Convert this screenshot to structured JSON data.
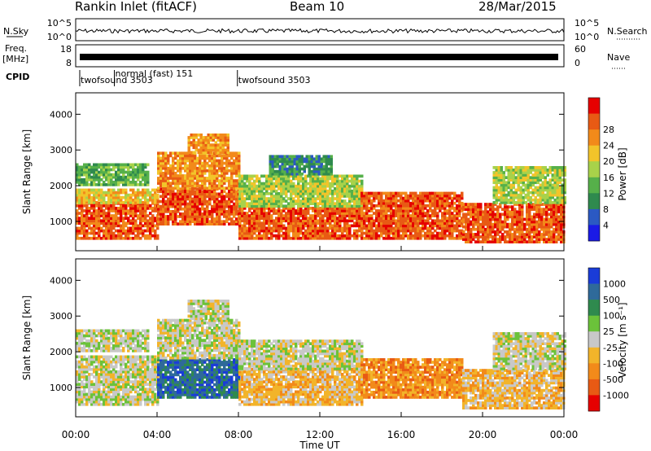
{
  "header": {
    "station": "Rankin Inlet (fitACF)",
    "beam": "Beam 10",
    "date": "28/Mar/2015"
  },
  "top_panels": {
    "nsky": {
      "left_label": "N.Sky",
      "left_ticks": [
        "10^5",
        "10^0"
      ],
      "right_ticks": [
        "10^5",
        "10^0"
      ],
      "right_label": "N.Search"
    },
    "freq": {
      "left_label_1": "Freq.",
      "left_label_2": "[MHz]",
      "left_ticks": [
        "18",
        "8"
      ],
      "right_ticks": [
        "60",
        "0"
      ],
      "right_label": "Nave"
    },
    "cpid": {
      "label": "CPID",
      "modes": [
        {
          "text": "twofsound 3503",
          "start_hour": 0.0
        },
        {
          "text": "normal (fast) 151",
          "start_hour": 1.9
        },
        {
          "text": "twofsound 3503",
          "start_hour": 7.95
        }
      ]
    }
  },
  "power_panel": {
    "ylabel": "Slant Range [km]",
    "yticks": [
      "1000",
      "2000",
      "3000",
      "4000"
    ],
    "colorbar_label": "Power [dB]",
    "colorbar_ticks": [
      "4",
      "8",
      "12",
      "16",
      "20",
      "24",
      "28"
    ],
    "colors": [
      "#1a1ae6",
      "#2b59c3",
      "#2f8a4e",
      "#56b04a",
      "#a8d24a",
      "#f2c42a",
      "#f28a1a",
      "#e85a14",
      "#e60000"
    ]
  },
  "velocity_panel": {
    "ylabel": "Slant Range [km]",
    "yticks": [
      "1000",
      "2000",
      "3000",
      "4000"
    ],
    "colorbar_label": "Velocity [m s⁻¹]",
    "colorbar_ticks": [
      "1000",
      "500",
      "100",
      "25",
      "-25",
      "-100",
      "-500",
      "-1000"
    ],
    "colors": [
      "#1a3cd8",
      "#2f6a9a",
      "#2f8a4e",
      "#6bc23a",
      "#c8c8c8",
      "#f2b42a",
      "#f28a1a",
      "#e85a14",
      "#e60000"
    ]
  },
  "xaxis": {
    "ticks": [
      "00:00",
      "04:00",
      "08:00",
      "12:00",
      "16:00",
      "20:00",
      "00:00"
    ],
    "label": "Time UT"
  },
  "chart_data": {
    "type": "heatmap",
    "x_range_hours": [
      0,
      24
    ],
    "y_range_km": [
      180,
      4600
    ],
    "panels": [
      {
        "name": "Power",
        "units": "dB",
        "colorbar_range": [
          0,
          30
        ],
        "bands": [
          {
            "t0": 0.0,
            "t1": 4.0,
            "r0": 500,
            "r1": 1500,
            "value": 28
          },
          {
            "t0": 0.0,
            "t1": 4.0,
            "r0": 1500,
            "r1": 1900,
            "value": 18
          },
          {
            "t0": 0.0,
            "t1": 3.5,
            "r0": 2000,
            "r1": 2600,
            "value": 12
          },
          {
            "t0": 4.0,
            "t1": 8.0,
            "r0": 900,
            "r1": 1900,
            "value": 28
          },
          {
            "t0": 4.0,
            "t1": 8.0,
            "r0": 1900,
            "r1": 2900,
            "value": 24
          },
          {
            "t0": 5.5,
            "t1": 7.5,
            "r0": 2900,
            "r1": 3400,
            "value": 22
          },
          {
            "t0": 8.0,
            "t1": 14.0,
            "r0": 500,
            "r1": 1400,
            "value": 27
          },
          {
            "t0": 8.0,
            "t1": 14.0,
            "r0": 1400,
            "r1": 2300,
            "value": 14
          },
          {
            "t0": 9.5,
            "t1": 12.5,
            "r0": 2300,
            "r1": 2800,
            "value": 8
          },
          {
            "t0": 14.0,
            "t1": 19.0,
            "r0": 500,
            "r1": 1800,
            "value": 28
          },
          {
            "t0": 19.0,
            "t1": 24.0,
            "r0": 400,
            "r1": 1500,
            "value": 27
          },
          {
            "t0": 20.5,
            "t1": 24.0,
            "r0": 1500,
            "r1": 2500,
            "value": 16
          }
        ]
      },
      {
        "name": "Velocity",
        "units": "m s-1",
        "colorbar_range": [
          -1000,
          1000
        ],
        "bands": [
          {
            "t0": 0.0,
            "t1": 4.0,
            "r0": 500,
            "r1": 1200,
            "value": 100
          },
          {
            "t0": 0.0,
            "t1": 4.0,
            "r0": 1200,
            "r1": 1900,
            "value": 0
          },
          {
            "t0": 0.0,
            "t1": 3.5,
            "r0": 2000,
            "r1": 2600,
            "value": 0
          },
          {
            "t0": 4.0,
            "t1": 8.0,
            "r0": 700,
            "r1": 1800,
            "value": 800
          },
          {
            "t0": 4.0,
            "t1": 8.0,
            "r0": 1800,
            "r1": 2900,
            "value": 0
          },
          {
            "t0": 5.5,
            "t1": 7.5,
            "r0": 2900,
            "r1": 3400,
            "value": 0
          },
          {
            "t0": 8.0,
            "t1": 14.0,
            "r0": 500,
            "r1": 1500,
            "value": -300
          },
          {
            "t0": 8.0,
            "t1": 14.0,
            "r0": 1500,
            "r1": 2300,
            "value": -100
          },
          {
            "t0": 14.0,
            "t1": 19.0,
            "r0": 700,
            "r1": 1800,
            "value": -400
          },
          {
            "t0": 19.0,
            "t1": 24.0,
            "r0": 400,
            "r1": 1500,
            "value": -200
          },
          {
            "t0": 20.5,
            "t1": 24.0,
            "r0": 1500,
            "r1": 2500,
            "value": 50
          }
        ]
      }
    ]
  }
}
